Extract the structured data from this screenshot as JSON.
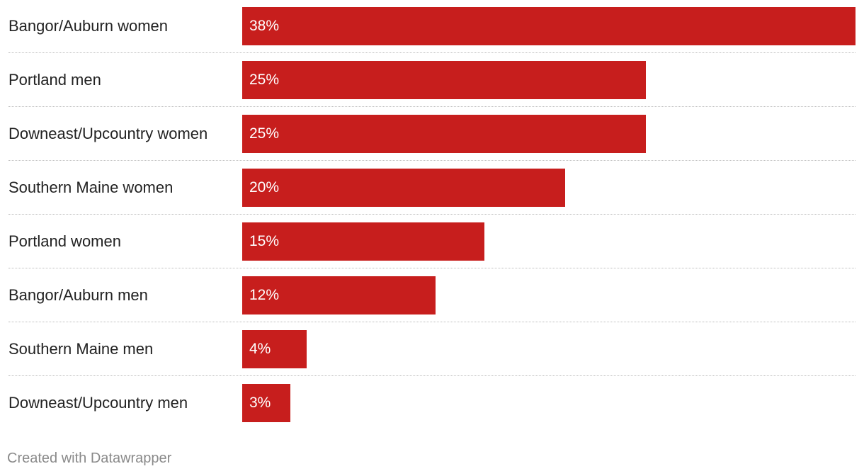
{
  "chart_data": {
    "type": "bar",
    "orientation": "horizontal",
    "categories": [
      "Bangor/Auburn women",
      "Portland men",
      "Downeast/Upcountry women",
      "Southern Maine women",
      "Portland women",
      "Bangor/Auburn men",
      "Southern Maine men",
      "Downeast/Upcountry men"
    ],
    "values": [
      38,
      25,
      25,
      20,
      15,
      12,
      4,
      3
    ],
    "value_labels": [
      "38%",
      "25%",
      "25%",
      "20%",
      "15%",
      "12%",
      "4%",
      "3%"
    ],
    "unit": "%",
    "xlim": [
      0,
      38
    ],
    "bar_color": "#c71e1d",
    "title": "",
    "xlabel": "",
    "ylabel": "",
    "grid": false
  },
  "footer": {
    "credit": "Created with Datawrapper"
  }
}
